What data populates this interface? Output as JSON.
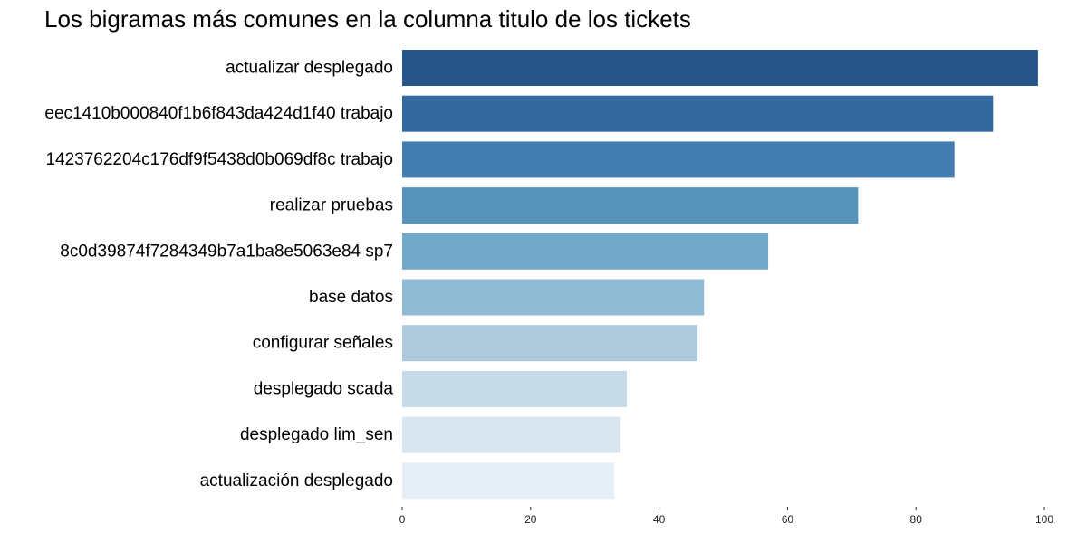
{
  "chart_data": {
    "type": "bar",
    "orientation": "horizontal",
    "title": "Los bigramas más comunes en la columna titulo de los tickets",
    "xlabel": "",
    "ylabel": "",
    "xlim": [
      0,
      100
    ],
    "xticks": [
      0,
      20,
      40,
      60,
      80,
      100
    ],
    "grid": false,
    "categories": [
      "actualizar desplegado",
      "eec1410b000840f1b6f843da424d1f40 trabajo",
      "1423762204c176df9f5438d0b069df8c trabajo",
      "realizar pruebas",
      "8c0d39874f7284349b7a1ba8e5063e84 sp7",
      "base datos",
      "configurar señales",
      "desplegado scada",
      "desplegado lim_sen",
      "actualización desplegado"
    ],
    "values": [
      99,
      92,
      86,
      71,
      57,
      47,
      46,
      35,
      34,
      33
    ],
    "colors": [
      "#265589",
      "#32699f",
      "#437daf",
      "#5893bc",
      "#72a8c8",
      "#90b9d3",
      "#adcadd",
      "#c7dae7",
      "#d9e6f0",
      "#e6eef7"
    ]
  }
}
